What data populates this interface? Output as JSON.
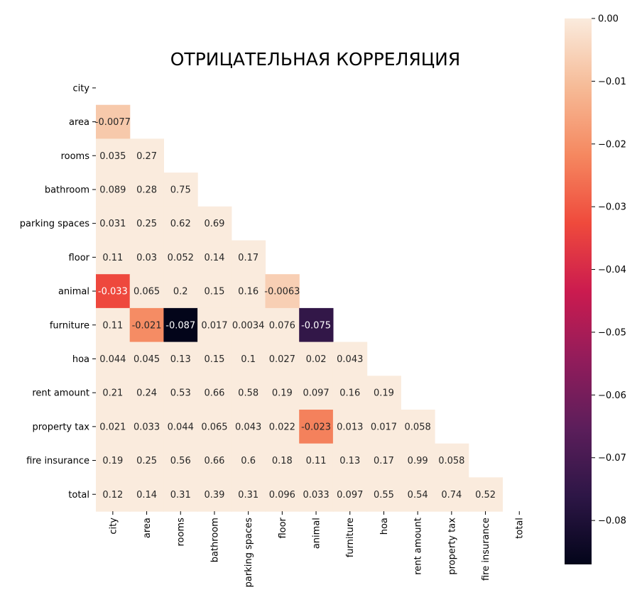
{
  "chart_data": {
    "type": "heatmap",
    "title": "ОТРИЦАТЕЛЬНАЯ КОРРЕЛЯЦИЯ",
    "variables": [
      "city",
      "area",
      "rooms",
      "bathroom",
      "parking spaces",
      "floor",
      "animal",
      "furniture",
      "hoa",
      "rent amount",
      "property tax",
      "fire insurance",
      "total"
    ],
    "mask": "upper-triangle",
    "cells": [
      {
        "row": 1,
        "col": 0,
        "label": "-0.0077",
        "value": -0.0077
      },
      {
        "row": 2,
        "col": 0,
        "label": "0.035",
        "value": 0
      },
      {
        "row": 2,
        "col": 1,
        "label": "0.27",
        "value": 0
      },
      {
        "row": 3,
        "col": 0,
        "label": "0.089",
        "value": 0
      },
      {
        "row": 3,
        "col": 1,
        "label": "0.28",
        "value": 0
      },
      {
        "row": 3,
        "col": 2,
        "label": "0.75",
        "value": 0
      },
      {
        "row": 4,
        "col": 0,
        "label": "0.031",
        "value": 0
      },
      {
        "row": 4,
        "col": 1,
        "label": "0.25",
        "value": 0
      },
      {
        "row": 4,
        "col": 2,
        "label": "0.62",
        "value": 0
      },
      {
        "row": 4,
        "col": 3,
        "label": "0.69",
        "value": 0
      },
      {
        "row": 5,
        "col": 0,
        "label": "0.11",
        "value": 0
      },
      {
        "row": 5,
        "col": 1,
        "label": "0.03",
        "value": 0
      },
      {
        "row": 5,
        "col": 2,
        "label": "0.052",
        "value": 0
      },
      {
        "row": 5,
        "col": 3,
        "label": "0.14",
        "value": 0
      },
      {
        "row": 5,
        "col": 4,
        "label": "0.17",
        "value": 0
      },
      {
        "row": 6,
        "col": 0,
        "label": "-0.033",
        "value": -0.033
      },
      {
        "row": 6,
        "col": 1,
        "label": "0.065",
        "value": 0
      },
      {
        "row": 6,
        "col": 2,
        "label": "0.2",
        "value": 0
      },
      {
        "row": 6,
        "col": 3,
        "label": "0.15",
        "value": 0
      },
      {
        "row": 6,
        "col": 4,
        "label": "0.16",
        "value": 0
      },
      {
        "row": 6,
        "col": 5,
        "label": "-0.0063",
        "value": -0.0063
      },
      {
        "row": 7,
        "col": 0,
        "label": "0.11",
        "value": 0
      },
      {
        "row": 7,
        "col": 1,
        "label": "-0.021",
        "value": -0.021
      },
      {
        "row": 7,
        "col": 2,
        "label": "-0.087",
        "value": -0.087
      },
      {
        "row": 7,
        "col": 3,
        "label": "0.017",
        "value": 0
      },
      {
        "row": 7,
        "col": 4,
        "label": "0.0034",
        "value": 0
      },
      {
        "row": 7,
        "col": 5,
        "label": "0.076",
        "value": 0
      },
      {
        "row": 7,
        "col": 6,
        "label": "-0.075",
        "value": -0.075
      },
      {
        "row": 8,
        "col": 0,
        "label": "0.044",
        "value": 0
      },
      {
        "row": 8,
        "col": 1,
        "label": "0.045",
        "value": 0
      },
      {
        "row": 8,
        "col": 2,
        "label": "0.13",
        "value": 0
      },
      {
        "row": 8,
        "col": 3,
        "label": "0.15",
        "value": 0
      },
      {
        "row": 8,
        "col": 4,
        "label": "0.1",
        "value": 0
      },
      {
        "row": 8,
        "col": 5,
        "label": "0.027",
        "value": 0
      },
      {
        "row": 8,
        "col": 6,
        "label": "0.02",
        "value": 0
      },
      {
        "row": 8,
        "col": 7,
        "label": "0.043",
        "value": 0
      },
      {
        "row": 9,
        "col": 0,
        "label": "0.21",
        "value": 0
      },
      {
        "row": 9,
        "col": 1,
        "label": "0.24",
        "value": 0
      },
      {
        "row": 9,
        "col": 2,
        "label": "0.53",
        "value": 0
      },
      {
        "row": 9,
        "col": 3,
        "label": "0.66",
        "value": 0
      },
      {
        "row": 9,
        "col": 4,
        "label": "0.58",
        "value": 0
      },
      {
        "row": 9,
        "col": 5,
        "label": "0.19",
        "value": 0
      },
      {
        "row": 9,
        "col": 6,
        "label": "0.097",
        "value": 0
      },
      {
        "row": 9,
        "col": 7,
        "label": "0.16",
        "value": 0
      },
      {
        "row": 9,
        "col": 8,
        "label": "0.19",
        "value": 0
      },
      {
        "row": 10,
        "col": 0,
        "label": "0.021",
        "value": 0
      },
      {
        "row": 10,
        "col": 1,
        "label": "0.033",
        "value": 0
      },
      {
        "row": 10,
        "col": 2,
        "label": "0.044",
        "value": 0
      },
      {
        "row": 10,
        "col": 3,
        "label": "0.065",
        "value": 0
      },
      {
        "row": 10,
        "col": 4,
        "label": "0.043",
        "value": 0
      },
      {
        "row": 10,
        "col": 5,
        "label": "0.022",
        "value": 0
      },
      {
        "row": 10,
        "col": 6,
        "label": "-0.023",
        "value": -0.023
      },
      {
        "row": 10,
        "col": 7,
        "label": "0.013",
        "value": 0
      },
      {
        "row": 10,
        "col": 8,
        "label": "0.017",
        "value": 0
      },
      {
        "row": 10,
        "col": 9,
        "label": "0.058",
        "value": 0
      },
      {
        "row": 11,
        "col": 0,
        "label": "0.19",
        "value": 0
      },
      {
        "row": 11,
        "col": 1,
        "label": "0.25",
        "value": 0
      },
      {
        "row": 11,
        "col": 2,
        "label": "0.56",
        "value": 0
      },
      {
        "row": 11,
        "col": 3,
        "label": "0.66",
        "value": 0
      },
      {
        "row": 11,
        "col": 4,
        "label": "0.6",
        "value": 0
      },
      {
        "row": 11,
        "col": 5,
        "label": "0.18",
        "value": 0
      },
      {
        "row": 11,
        "col": 6,
        "label": "0.11",
        "value": 0
      },
      {
        "row": 11,
        "col": 7,
        "label": "0.13",
        "value": 0
      },
      {
        "row": 11,
        "col": 8,
        "label": "0.17",
        "value": 0
      },
      {
        "row": 11,
        "col": 9,
        "label": "0.99",
        "value": 0
      },
      {
        "row": 11,
        "col": 10,
        "label": "0.058",
        "value": 0
      },
      {
        "row": 12,
        "col": 0,
        "label": "0.12",
        "value": 0
      },
      {
        "row": 12,
        "col": 1,
        "label": "0.14",
        "value": 0
      },
      {
        "row": 12,
        "col": 2,
        "label": "0.31",
        "value": 0
      },
      {
        "row": 12,
        "col": 3,
        "label": "0.39",
        "value": 0
      },
      {
        "row": 12,
        "col": 4,
        "label": "0.31",
        "value": 0
      },
      {
        "row": 12,
        "col": 5,
        "label": "0.096",
        "value": 0
      },
      {
        "row": 12,
        "col": 6,
        "label": "0.033",
        "value": 0
      },
      {
        "row": 12,
        "col": 7,
        "label": "0.097",
        "value": 0
      },
      {
        "row": 12,
        "col": 8,
        "label": "0.55",
        "value": 0
      },
      {
        "row": 12,
        "col": 9,
        "label": "0.54",
        "value": 0
      },
      {
        "row": 12,
        "col": 10,
        "label": "0.74",
        "value": 0
      },
      {
        "row": 12,
        "col": 11,
        "label": "0.52",
        "value": 0
      }
    ],
    "colorbar": {
      "range": [
        -0.087,
        0.0
      ],
      "ticks": [
        0.0,
        -0.01,
        -0.02,
        -0.03,
        -0.04,
        -0.05,
        -0.06,
        -0.07,
        -0.08
      ],
      "tick_labels": [
        "0.00",
        "−0.01",
        "−0.02",
        "−0.03",
        "−0.04",
        "−0.05",
        "−0.06",
        "−0.07",
        "−0.08"
      ],
      "colormap": "rocket",
      "colors": [
        "#03051a",
        "#2d1646",
        "#5c1e5b",
        "#921c5b",
        "#cb1b4f",
        "#ef4a3c",
        "#f58860",
        "#f6bb97",
        "#faebdd"
      ]
    },
    "grid": false,
    "legend": "colorbar-right"
  }
}
